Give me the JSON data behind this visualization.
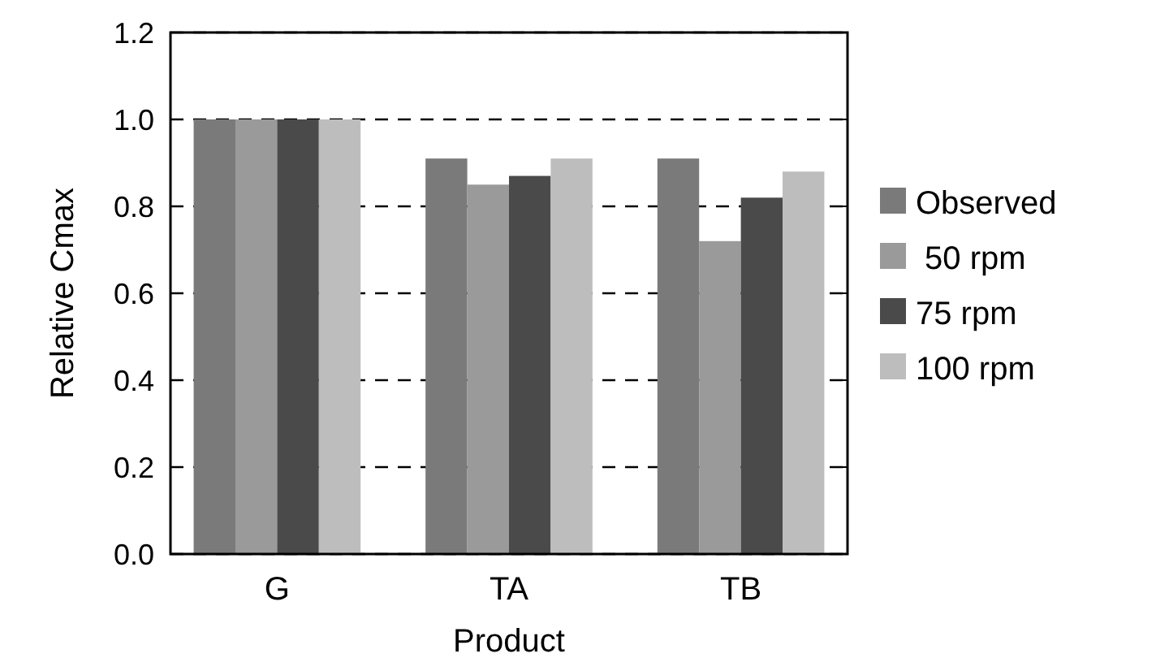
{
  "chart_data": {
    "type": "bar",
    "xlabel": "Product",
    "ylabel": "Relative Cmax",
    "categories": [
      "G",
      "TA",
      "TB"
    ],
    "series": [
      {
        "name": "Observed",
        "color": "#7a7a7a",
        "values": [
          1.0,
          0.91,
          0.91
        ]
      },
      {
        "name": " 50 rpm",
        "color": "#9a9a9a",
        "values": [
          1.0,
          0.85,
          0.72
        ]
      },
      {
        "name": "75 rpm",
        "color": "#4a4a4a",
        "values": [
          1.0,
          0.87,
          0.82
        ]
      },
      {
        "name": "100 rpm",
        "color": "#bdbdbd",
        "values": [
          1.0,
          0.91,
          0.88
        ]
      }
    ],
    "ylim": [
      0,
      1.2
    ],
    "yticks": [
      {
        "value": 0,
        "label": "0.0"
      },
      {
        "value": 0.2,
        "label": "0.2"
      },
      {
        "value": 0.4,
        "label": "0.4"
      },
      {
        "value": 0.6,
        "label": "0.6"
      },
      {
        "value": 0.8,
        "label": "0.8"
      },
      {
        "value": 1.0,
        "label": "1.0"
      },
      {
        "value": 1.2,
        "label": "1.2"
      }
    ],
    "grid": "y",
    "line_style": "dashed",
    "legend": "right"
  }
}
